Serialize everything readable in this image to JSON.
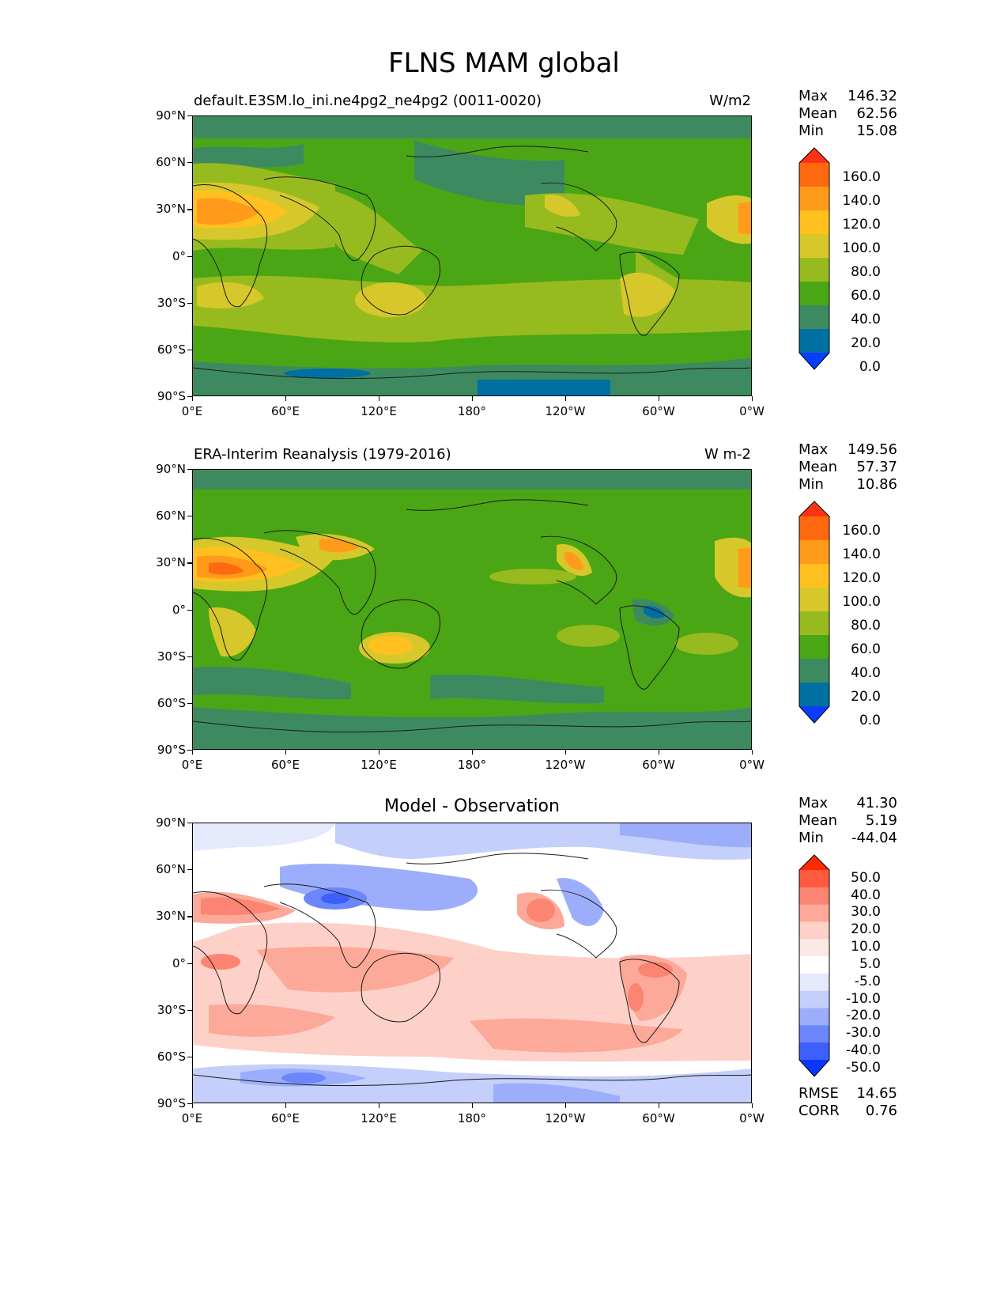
{
  "title": "FLNS MAM global",
  "lat_ticks": [
    "90°N",
    "60°N",
    "30°N",
    "0°",
    "30°S",
    "60°S",
    "90°S"
  ],
  "lon_ticks": [
    "0°E",
    "60°E",
    "120°E",
    "180°",
    "120°W",
    "60°W",
    "0°W"
  ],
  "panels": [
    {
      "left_title": "default.E3SM.lo_ini.ne4pg2_ne4pg2 (0011-0020)",
      "units": "W/m2",
      "stats": {
        "max_label": "Max",
        "max": "146.32",
        "mean_label": "Mean",
        "mean": "62.56",
        "min_label": "Min",
        "min": "15.08"
      },
      "colorbar": {
        "labels": [
          "160.0",
          "140.0",
          "120.0",
          "100.0",
          "80.0",
          "60.0",
          "40.0",
          "20.0",
          "0.0"
        ],
        "colors": [
          "#ff3314",
          "#ff6a10",
          "#ff9a1a",
          "#ffc020",
          "#d6c82a",
          "#97bb1e",
          "#4aa614",
          "#3e8a60",
          "#006fa2",
          "#0a3dfe"
        ]
      }
    },
    {
      "left_title": "ERA-Interim Reanalysis (1979-2016)",
      "units": "W m-2",
      "stats": {
        "max_label": "Max",
        "max": "149.56",
        "mean_label": "Mean",
        "mean": "57.37",
        "min_label": "Min",
        "min": "10.86"
      },
      "colorbar": {
        "labels": [
          "160.0",
          "140.0",
          "120.0",
          "100.0",
          "80.0",
          "60.0",
          "40.0",
          "20.0",
          "0.0"
        ],
        "colors": [
          "#ff3314",
          "#ff6a10",
          "#ff9a1a",
          "#ffc020",
          "#d6c82a",
          "#97bb1e",
          "#4aa614",
          "#3e8a60",
          "#006fa2",
          "#0a3dfe"
        ]
      }
    },
    {
      "center_title": "Model - Observation",
      "stats": {
        "max_label": "Max",
        "max": "41.30",
        "mean_label": "Mean",
        "mean": "5.19",
        "min_label": "Min",
        "min": "-44.04"
      },
      "colorbar": {
        "labels": [
          "50.0",
          "40.0",
          "30.0",
          "20.0",
          "10.0",
          "5.0",
          "-5.0",
          "-10.0",
          "-20.0",
          "-30.0",
          "-40.0",
          "-50.0"
        ],
        "colors": [
          "#ff2a00",
          "#ff5a40",
          "#fb8572",
          "#fca99a",
          "#fdd0c8",
          "#fbe9e5",
          "#ffffff",
          "#e5e9fc",
          "#c4cffb",
          "#9caefb",
          "#6c86fb",
          "#3d60fc",
          "#0a36ff"
        ]
      },
      "metrics": {
        "rmse_label": "RMSE",
        "rmse": "14.65",
        "corr_label": "CORR",
        "corr": "0.76"
      }
    }
  ],
  "colors": {
    "ocean_green": "#4aa614",
    "land_outline": "#1a1a1a",
    "diff_neutral": "#ffffff"
  }
}
